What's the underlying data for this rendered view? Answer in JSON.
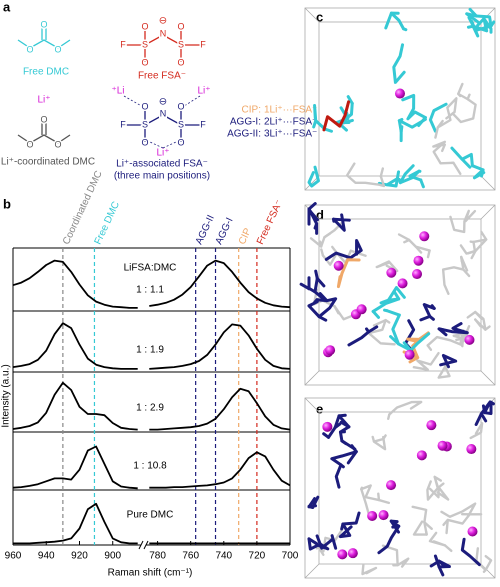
{
  "panel_labels": [
    "a",
    "b",
    "c",
    "d",
    "e"
  ],
  "structures": {
    "free_dmc": {
      "caption": "Free DMC",
      "color": "#35c9d4",
      "atoms": [
        "O",
        "O",
        "O"
      ]
    },
    "free_fsa": {
      "caption": "Free FSA⁻",
      "color": "#d42a1e",
      "charge": "⊖",
      "atoms": [
        "F",
        "S",
        "N",
        "S",
        "F",
        "O",
        "O",
        "O",
        "O"
      ]
    },
    "li_dmc": {
      "caption": "Li⁺-coordinated DMC",
      "color": "#555555",
      "li": "Li⁺",
      "li_color": "#d61fd6",
      "atoms": [
        "O",
        "O",
        "O"
      ]
    },
    "li_fsa": {
      "caption": "Li⁺-associated FSA⁻",
      "caption2": "(three main positions)",
      "color": "#1c1c7c",
      "charge": "⊖",
      "li": [
        "⁺Li",
        "Li⁺",
        "Li⁺"
      ],
      "li_color": "#d61fd6",
      "atoms": [
        "F",
        "S",
        "N",
        "S",
        "F",
        "O",
        "O",
        "O",
        "O"
      ]
    }
  },
  "positions": [
    {
      "label": "CIP:",
      "text": "1Li⁺···FSA⁻",
      "color": "#f0a868"
    },
    {
      "label": "AGG-I:",
      "text": "2Li⁺···FSA⁻",
      "color": "#1c1c7c"
    },
    {
      "label": "AGG-II:",
      "text": "3Li⁺···FSA⁻",
      "color": "#1c1c7c"
    }
  ],
  "chart_data": {
    "type": "line",
    "xlabel": "Raman shift (cm⁻¹)",
    "ylabel": "Intensity (a.u.)",
    "annotation": "LiFSA:DMC",
    "x": [
      960,
      955,
      950,
      945,
      940,
      935,
      930,
      925,
      920,
      915,
      910,
      905,
      900,
      895,
      890,
      885,
      785,
      780,
      775,
      770,
      765,
      760,
      755,
      750,
      745,
      740,
      735,
      730,
      725,
      720,
      715,
      710,
      705,
      700
    ],
    "xlim": [
      960,
      700
    ],
    "x_break": [
      883,
      787
    ],
    "xticks": [
      960,
      940,
      920,
      900,
      780,
      760,
      740,
      720,
      700
    ],
    "ylim": [
      0,
      1
    ],
    "series": [
      {
        "name": "1 : 1.1",
        "color": "#000000",
        "values": [
          0.41,
          0.45,
          0.52,
          0.62,
          0.73,
          0.8,
          0.78,
          0.62,
          0.42,
          0.25,
          0.15,
          0.1,
          0.07,
          0.06,
          0.05,
          0.05,
          0.08,
          0.1,
          0.13,
          0.18,
          0.26,
          0.38,
          0.55,
          0.72,
          0.8,
          0.76,
          0.62,
          0.45,
          0.3,
          0.2,
          0.13,
          0.09,
          0.07,
          0.06
        ]
      },
      {
        "name": "1 : 1.9",
        "color": "#000000",
        "values": [
          0.08,
          0.1,
          0.13,
          0.2,
          0.35,
          0.62,
          0.8,
          0.72,
          0.45,
          0.22,
          0.12,
          0.08,
          0.06,
          0.05,
          0.05,
          0.05,
          0.05,
          0.06,
          0.07,
          0.08,
          0.1,
          0.13,
          0.18,
          0.28,
          0.45,
          0.65,
          0.78,
          0.76,
          0.6,
          0.38,
          0.2,
          0.1,
          0.06,
          0.05
        ]
      },
      {
        "name": "1 : 2.9",
        "color": "#000000",
        "values": [
          0.05,
          0.07,
          0.1,
          0.16,
          0.32,
          0.62,
          0.82,
          0.7,
          0.42,
          0.3,
          0.3,
          0.28,
          0.15,
          0.07,
          0.05,
          0.04,
          0.04,
          0.04,
          0.05,
          0.06,
          0.07,
          0.08,
          0.1,
          0.14,
          0.22,
          0.38,
          0.58,
          0.72,
          0.68,
          0.48,
          0.26,
          0.12,
          0.06,
          0.04
        ]
      },
      {
        "name": "1 : 10.8",
        "color": "#000000",
        "values": [
          0.04,
          0.05,
          0.07,
          0.1,
          0.15,
          0.2,
          0.2,
          0.18,
          0.35,
          0.68,
          0.75,
          0.45,
          0.15,
          0.06,
          0.04,
          0.03,
          0.04,
          0.04,
          0.04,
          0.05,
          0.05,
          0.06,
          0.07,
          0.08,
          0.1,
          0.13,
          0.2,
          0.35,
          0.55,
          0.65,
          0.58,
          0.35,
          0.16,
          0.08
        ]
      },
      {
        "name": "Pure DMC",
        "color": "#000000",
        "values": [
          0.03,
          0.03,
          0.03,
          0.04,
          0.05,
          0.06,
          0.08,
          0.12,
          0.3,
          0.65,
          0.75,
          0.42,
          0.12,
          0.05,
          0.03,
          0.03,
          0.03,
          0.03,
          0.03,
          0.03,
          0.03,
          0.03,
          0.03,
          0.03,
          0.03,
          0.03,
          0.03,
          0.03,
          0.03,
          0.03,
          0.03,
          0.03,
          0.03,
          0.03
        ]
      }
    ],
    "reference_lines": [
      {
        "label": "Coordinated DMC",
        "value": 930,
        "color": "#888888"
      },
      {
        "label": "Free DMC",
        "value": 911,
        "color": "#35c9d4"
      },
      {
        "label": "AGG-II",
        "value": 757,
        "color": "#1c1c7c"
      },
      {
        "label": "AGG-I",
        "value": 745,
        "color": "#1c1c7c"
      },
      {
        "label": "CIP",
        "value": 731,
        "color": "#f0a868"
      },
      {
        "label": "Free FSA⁻",
        "value": 720,
        "color": "#d42a1e"
      }
    ]
  }
}
